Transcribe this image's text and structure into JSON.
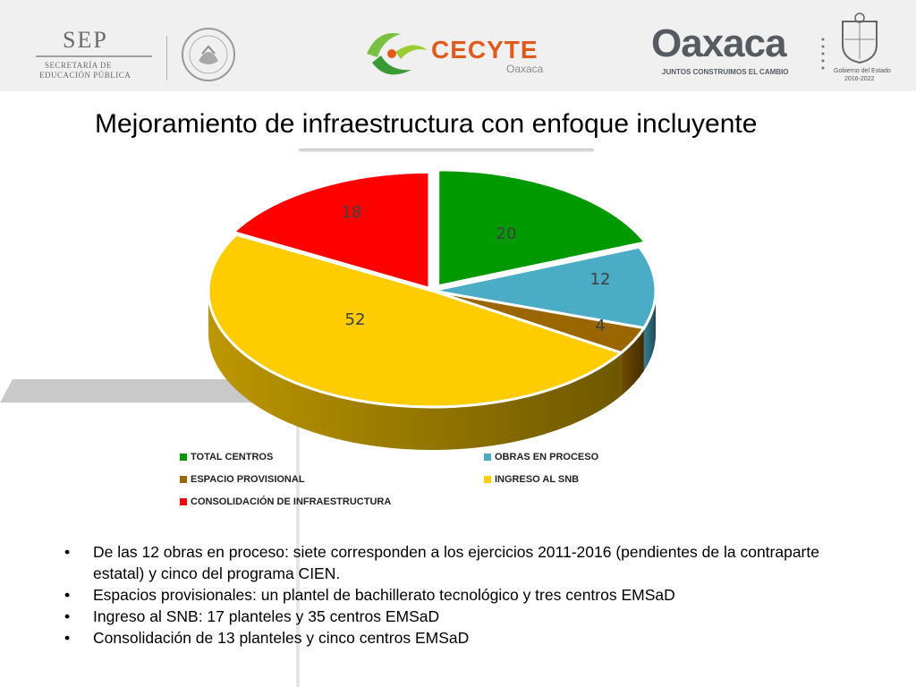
{
  "header": {
    "sep": {
      "title": "SEP",
      "line1": "SECRETARÍA DE",
      "line2": "EDUCACIÓN PÚBLICA"
    },
    "cecyte": {
      "name": "CECYTE",
      "sub": "Oaxaca"
    },
    "oaxaca": {
      "name": "Oaxaca",
      "slogan": "JUNTOS CONSTRUIMOS EL CAMBIO",
      "gob_line1": "Gobierno del Estado",
      "gob_line2": "2016-2022"
    }
  },
  "title": "Mejoramiento de infraestructura con enfoque incluyente",
  "chart_data": {
    "type": "pie",
    "title": "Mejoramiento de infraestructura con enfoque incluyente",
    "slices": [
      {
        "label": "TOTAL CENTROS",
        "value": 20,
        "color": "#009900"
      },
      {
        "label": "OBRAS EN PROCESO",
        "value": 12,
        "color": "#4bacc6"
      },
      {
        "label": "ESPACIO PROVISIONAL",
        "value": 4,
        "color": "#996600"
      },
      {
        "label": "INGRESO AL SNB",
        "value": 52,
        "color": "#ffcc00"
      },
      {
        "label": "CONSOLIDACIÓN DE INFRAESTRUCTURA",
        "value": 18,
        "color": "#ff0000"
      }
    ],
    "legend_position": "bottom"
  },
  "bullets": [
    "De las 12 obras en proceso:  siete corresponden a los ejercicios  2011-2016 (pendientes de la contraparte estatal)   y cinco del programa CIEN.",
    "Espacios provisionales:  un  plantel  de bachillerato tecnológico y  tres centros EMSaD",
    "Ingreso al SNB: 17 planteles y 35 centros EMSaD",
    "Consolidación de 13 planteles  y cinco centros EMSaD"
  ],
  "bullet_symbol": "•"
}
